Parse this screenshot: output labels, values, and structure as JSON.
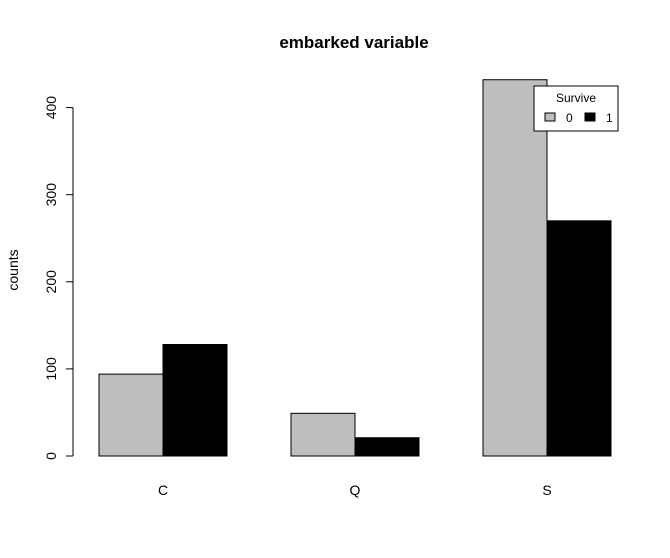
{
  "chart_data": {
    "type": "bar",
    "title": "embarked variable",
    "xlabel": "",
    "ylabel": "counts",
    "categories": [
      "C",
      "Q",
      "S"
    ],
    "series": [
      {
        "name": "0",
        "values": [
          94,
          49,
          432
        ],
        "color": "#bebebe"
      },
      {
        "name": "1",
        "values": [
          128,
          21,
          270
        ],
        "color": "#000000"
      }
    ],
    "ylim": [
      0,
      440
    ],
    "yticks": [
      0,
      100,
      200,
      300,
      400
    ],
    "legend": {
      "title": "Survive",
      "placement": "top-right"
    },
    "grid": false
  }
}
